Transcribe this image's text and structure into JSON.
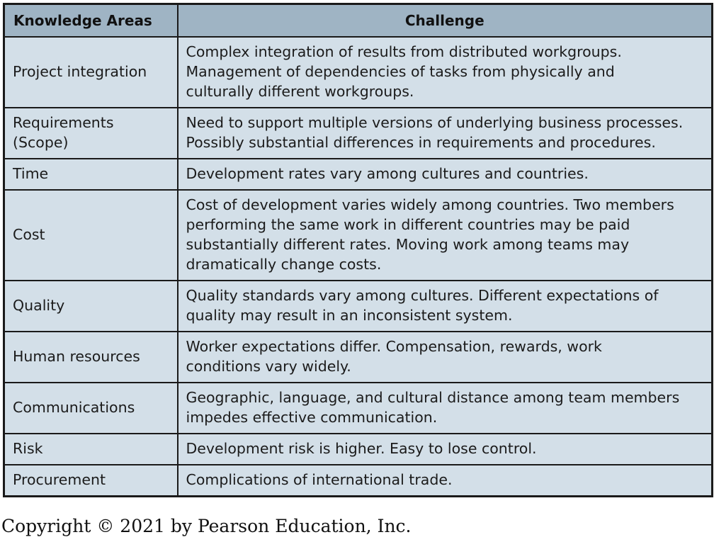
{
  "header": {
    "col1": "Knowledge Areas",
    "col2": "Challenge"
  },
  "rows": [
    {
      "area": "Project integration",
      "challenge": [
        "Complex integration of results from distributed workgroups.",
        "Management of dependencies of tasks from physically and",
        "culturally different workgroups."
      ]
    },
    {
      "area": "Requirements (Scope)",
      "challenge": [
        "Need to support multiple versions of underlying business processes.",
        "Possibly substantial differences in requirements and procedures."
      ]
    },
    {
      "area": "Time",
      "challenge": [
        "Development rates vary among cultures and countries."
      ]
    },
    {
      "area": "Cost",
      "challenge": [
        "Cost of development varies widely among countries. Two members",
        "performing the same work in different countries may be paid",
        "substantially different rates. Moving work among teams may",
        "dramatically change costs."
      ]
    },
    {
      "area": "Quality",
      "challenge": [
        "Quality standards vary among cultures. Different expectations of",
        "quality may result in an inconsistent system."
      ]
    },
    {
      "area": "Human resources",
      "challenge": [
        "Worker expectations differ. Compensation, rewards, work",
        "conditions vary widely."
      ]
    },
    {
      "area": "Communications",
      "challenge": [
        "Geographic, language, and cultural distance among team members",
        "impedes effective communication."
      ]
    },
    {
      "area": "Risk",
      "challenge": [
        "Development risk is higher. Easy to lose control."
      ]
    },
    {
      "area": "Procurement",
      "challenge": [
        "Complications of international trade."
      ]
    }
  ],
  "footer": {
    "copyright": "Copyright © 2021 by Pearson Education, Inc."
  },
  "colors": {
    "header_bg": "#9fb4c4",
    "cell_bg": "#d3dfe8",
    "border": "#1a1a1a"
  }
}
